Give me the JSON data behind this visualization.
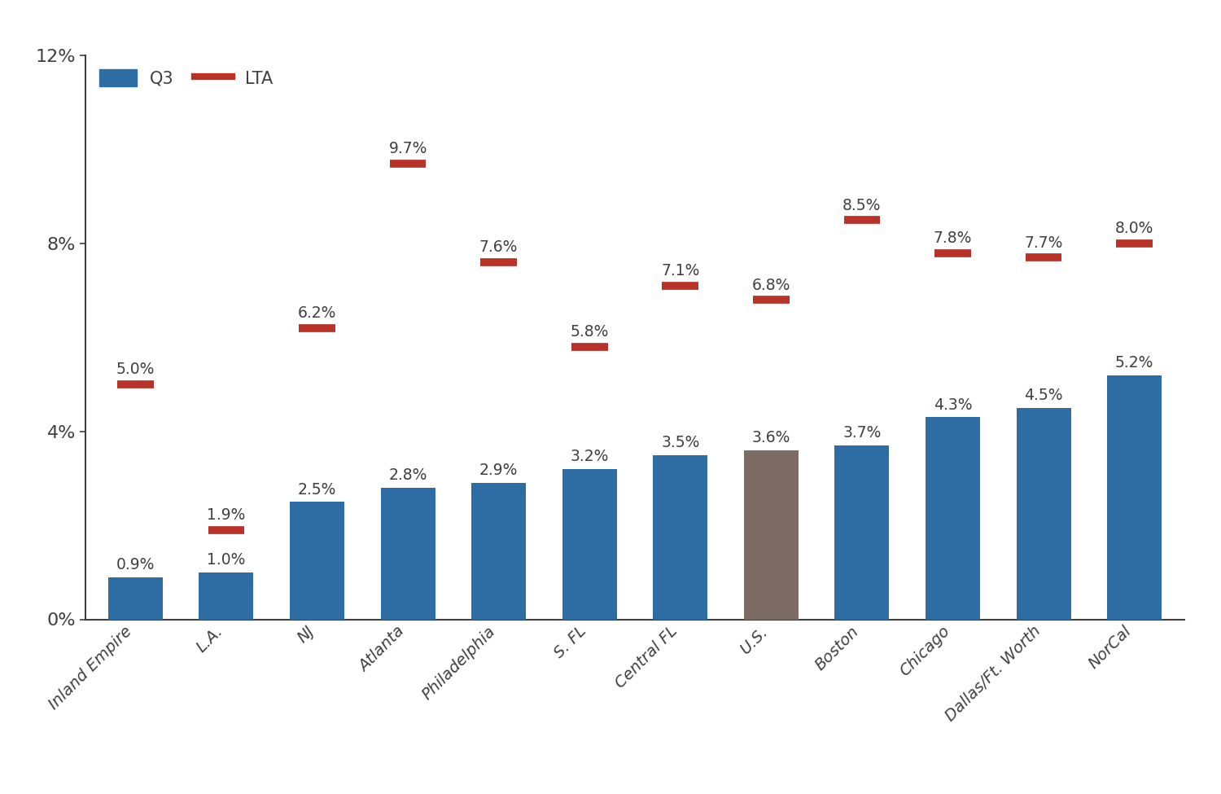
{
  "categories": [
    "Inland Empire",
    "L.A.",
    "NJ",
    "Atlanta",
    "Philadelphia",
    "S. FL",
    "Central FL",
    "U.S.",
    "Boston",
    "Chicago",
    "Dallas/Ft. Worth",
    "NorCal"
  ],
  "q3_values": [
    0.9,
    1.0,
    2.5,
    2.8,
    2.9,
    3.2,
    3.5,
    3.6,
    3.7,
    4.3,
    4.5,
    5.2
  ],
  "lta_values": [
    5.0,
    1.9,
    6.2,
    9.7,
    7.6,
    5.8,
    7.1,
    6.8,
    8.5,
    7.8,
    7.7,
    8.0
  ],
  "q3_labels": [
    "0.9%",
    "1.0%",
    "2.5%",
    "2.8%",
    "2.9%",
    "3.2%",
    "3.5%",
    "3.6%",
    "3.7%",
    "4.3%",
    "4.5%",
    "5.2%"
  ],
  "lta_labels": [
    "5.0%",
    "1.9%",
    "6.2%",
    "9.7%",
    "7.6%",
    "5.8%",
    "7.1%",
    "6.8%",
    "8.5%",
    "7.8%",
    "7.7%",
    "8.0%"
  ],
  "bar_colors": [
    "#2e6da4",
    "#2e6da4",
    "#2e6da4",
    "#2e6da4",
    "#2e6da4",
    "#2e6da4",
    "#2e6da4",
    "#7d6b65",
    "#2e6da4",
    "#2e6da4",
    "#2e6da4",
    "#2e6da4"
  ],
  "q3_color": "#2e6da4",
  "lta_color": "#b83228",
  "background_color": "#ffffff",
  "ylim": [
    0,
    12
  ],
  "yticks": [
    0,
    4,
    8,
    12
  ],
  "ytick_labels": [
    "0%",
    "4%",
    "8%",
    "12%"
  ],
  "legend_q3_label": "Q3",
  "legend_lta_label": "LTA",
  "text_color": "#404040",
  "axis_color": "#404040",
  "spine_color": "#404040"
}
